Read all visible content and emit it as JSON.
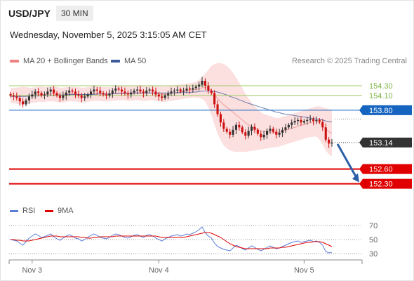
{
  "header": {
    "symbol": "USD/JPY",
    "timeframe": "30 MIN",
    "datetime": "Wednesday, November 5, 2025 3:15:05 AM CET"
  },
  "legend": {
    "ma20_label": "MA 20 + Bollinger Bands",
    "ma50_label": "MA 50",
    "copyright": "Research © 2025 Trading Central"
  },
  "rsi_legend": {
    "rsi_label": "RSI",
    "ma9_label": "9MA"
  },
  "colors": {
    "ma20": "#f08080",
    "ma50": "#3a5a9a",
    "bollinger_fill": "#fbd9d9",
    "rsi": "#5b7fd6",
    "ma9": "#e00000",
    "resistance": "#9ccc65",
    "pivot": "#1565c0",
    "support": "#e00000",
    "arrow": "#2c5ea8",
    "candle_up": "#333333",
    "candle_down": "#cc1111"
  },
  "chart_data": [
    {
      "type": "candlestick",
      "name": "price",
      "ylim": [
        151.95,
        154.6
      ],
      "x_labels": [
        "Nov 3",
        "Nov 4",
        "Nov 5"
      ],
      "levels": [
        {
          "value": 154.3,
          "label": "154.30",
          "kind": "resistance"
        },
        {
          "value": 154.1,
          "label": "154.10",
          "kind": "resistance"
        },
        {
          "value": 153.8,
          "label": "153.80",
          "kind": "pivot"
        },
        {
          "value": 152.6,
          "label": "152.60",
          "kind": "support"
        },
        {
          "value": 152.3,
          "label": "152.30",
          "kind": "support"
        }
      ],
      "last_price": {
        "value": 153.14,
        "label": "153.14"
      },
      "target": 152.3,
      "closes": [
        154.1,
        154.08,
        154.05,
        153.98,
        153.92,
        154.0,
        154.08,
        154.12,
        154.18,
        154.15,
        154.1,
        154.12,
        154.18,
        154.22,
        154.15,
        154.1,
        154.05,
        154.1,
        154.16,
        154.2,
        154.18,
        154.12,
        154.1,
        154.05,
        154.08,
        154.12,
        154.18,
        154.22,
        154.2,
        154.15,
        154.12,
        154.1,
        154.14,
        154.2,
        154.24,
        154.22,
        154.18,
        154.15,
        154.12,
        154.16,
        154.2,
        154.22,
        154.18,
        154.15,
        154.2,
        154.22,
        154.18,
        154.12,
        154.08,
        154.05,
        154.1,
        154.14,
        154.18,
        154.2,
        154.22,
        154.18,
        154.2,
        154.24,
        154.22,
        154.25,
        154.28,
        154.32,
        154.4,
        154.3,
        154.2,
        154.15,
        153.92,
        153.72,
        153.55,
        153.42,
        153.36,
        153.3,
        153.4,
        153.5,
        153.45,
        153.35,
        153.28,
        153.38,
        153.46,
        153.4,
        153.32,
        153.25,
        153.3,
        153.38,
        153.42,
        153.36,
        153.3,
        153.34,
        153.4,
        153.45,
        153.5,
        153.55,
        153.58,
        153.6,
        153.55,
        153.58,
        153.6,
        153.62,
        153.58,
        153.6,
        153.56,
        153.45,
        153.2,
        153.12,
        153.14
      ],
      "bollinger_upper": [
        154.25,
        154.26,
        154.26,
        154.27,
        154.28,
        154.27,
        154.26,
        154.26,
        154.27,
        154.28,
        154.28,
        154.27,
        154.27,
        154.28,
        154.28,
        154.27,
        154.26,
        154.26,
        154.27,
        154.28,
        154.28,
        154.27,
        154.27,
        154.26,
        154.26,
        154.27,
        154.28,
        154.29,
        154.29,
        154.28,
        154.27,
        154.27,
        154.27,
        154.28,
        154.29,
        154.3,
        154.3,
        154.29,
        154.29,
        154.29,
        154.3,
        154.31,
        154.31,
        154.3,
        154.3,
        154.31,
        154.31,
        154.3,
        154.29,
        154.28,
        154.28,
        154.29,
        154.3,
        154.31,
        154.32,
        154.32,
        154.33,
        154.34,
        154.35,
        154.36,
        154.38,
        154.42,
        154.48,
        154.55,
        154.62,
        154.7,
        154.74,
        154.76,
        154.76,
        154.74,
        154.7,
        154.64,
        154.56,
        154.46,
        154.36,
        154.25,
        154.14,
        154.04,
        153.96,
        153.88,
        153.82,
        153.76,
        153.72,
        153.7,
        153.68,
        153.66,
        153.64,
        153.64,
        153.66,
        153.68,
        153.7,
        153.72,
        153.74,
        153.76,
        153.78,
        153.8,
        153.82,
        153.84,
        153.86,
        153.88,
        153.88,
        153.86,
        153.84,
        153.82,
        153.8
      ],
      "bollinger_lower": [
        153.95,
        153.94,
        153.93,
        153.92,
        153.92,
        153.93,
        153.94,
        153.95,
        153.96,
        153.97,
        153.97,
        153.97,
        153.98,
        153.98,
        153.98,
        153.97,
        153.96,
        153.96,
        153.97,
        153.98,
        153.98,
        153.98,
        153.97,
        153.96,
        153.96,
        153.97,
        153.98,
        153.99,
        153.99,
        153.99,
        153.98,
        153.98,
        153.98,
        153.99,
        154.0,
        154.0,
        154.0,
        154.0,
        153.99,
        153.99,
        154.0,
        154.0,
        154.0,
        153.99,
        153.99,
        154.0,
        154.0,
        153.99,
        153.98,
        153.97,
        153.97,
        153.98,
        153.99,
        154.0,
        154.01,
        154.02,
        154.03,
        154.04,
        154.05,
        154.06,
        154.06,
        154.05,
        154.03,
        153.98,
        153.86,
        153.7,
        153.5,
        153.32,
        153.18,
        153.08,
        153.02,
        152.98,
        152.96,
        152.95,
        152.95,
        152.95,
        152.95,
        152.96,
        152.97,
        152.98,
        152.99,
        153.0,
        153.01,
        153.02,
        153.03,
        153.04,
        153.05,
        153.06,
        153.08,
        153.1,
        153.12,
        153.14,
        153.16,
        153.18,
        153.2,
        153.22,
        153.24,
        153.25,
        153.26,
        153.26,
        153.2,
        153.1,
        152.98,
        152.9,
        152.86
      ],
      "ma50": [
        154.08,
        154.08,
        154.08,
        154.08,
        154.08,
        154.08,
        154.09,
        154.09,
        154.09,
        154.09,
        154.1,
        154.1,
        154.1,
        154.1,
        154.1,
        154.11,
        154.11,
        154.11,
        154.11,
        154.12,
        154.12,
        154.12,
        154.12,
        154.12,
        154.12,
        154.12,
        154.12,
        154.12,
        154.13,
        154.13,
        154.13,
        154.13,
        154.13,
        154.13,
        154.14,
        154.14,
        154.14,
        154.14,
        154.14,
        154.14,
        154.15,
        154.15,
        154.15,
        154.15,
        154.15,
        154.15,
        154.15,
        154.15,
        154.15,
        154.15,
        154.15,
        154.15,
        154.15,
        154.15,
        154.16,
        154.16,
        154.16,
        154.16,
        154.16,
        154.17,
        154.17,
        154.18,
        154.19,
        154.19,
        154.19,
        154.19,
        154.18,
        154.17,
        154.15,
        154.13,
        154.11,
        154.08,
        154.06,
        154.04,
        154.01,
        153.99,
        153.96,
        153.94,
        153.92,
        153.9,
        153.88,
        153.86,
        153.84,
        153.82,
        153.8,
        153.78,
        153.76,
        153.75,
        153.73,
        153.72,
        153.71,
        153.7,
        153.69,
        153.68,
        153.67,
        153.66,
        153.65,
        153.64,
        153.63,
        153.62,
        153.61,
        153.6,
        153.58,
        153.57,
        153.56
      ]
    },
    {
      "type": "line",
      "name": "RSI",
      "ylim": [
        20,
        80
      ],
      "y_ticks": [
        70,
        50,
        30
      ],
      "rsi": [
        50,
        49,
        48,
        45,
        42,
        47,
        52,
        55,
        58,
        56,
        53,
        54,
        56,
        58,
        54,
        51,
        49,
        52,
        55,
        57,
        55,
        52,
        51,
        48,
        50,
        53,
        56,
        58,
        56,
        53,
        52,
        51,
        53,
        56,
        58,
        57,
        55,
        53,
        52,
        54,
        56,
        57,
        55,
        53,
        56,
        57,
        55,
        52,
        50,
        48,
        51,
        53,
        55,
        56,
        57,
        55,
        56,
        58,
        57,
        59,
        61,
        64,
        68,
        60,
        55,
        52,
        45,
        40,
        38,
        36,
        35,
        34,
        38,
        42,
        40,
        37,
        35,
        38,
        41,
        39,
        36,
        34,
        36,
        39,
        41,
        39,
        37,
        38,
        40,
        42,
        44,
        46,
        47,
        48,
        46,
        47,
        48,
        49,
        47,
        48,
        46,
        42,
        33,
        31,
        32
      ],
      "ma9": [
        50,
        50,
        49,
        49,
        48,
        48,
        48,
        49,
        50,
        51,
        52,
        53,
        54,
        55,
        55,
        55,
        54,
        54,
        54,
        54,
        54,
        54,
        54,
        53,
        53,
        52,
        52,
        53,
        53,
        54,
        54,
        54,
        54,
        54,
        55,
        55,
        55,
        55,
        55,
        55,
        55,
        55,
        55,
        55,
        55,
        55,
        55,
        55,
        54,
        53,
        53,
        53,
        53,
        53,
        53,
        53,
        53,
        54,
        55,
        56,
        57,
        58,
        59,
        60,
        60,
        59,
        57,
        55,
        53,
        50,
        47,
        44,
        42,
        40,
        39,
        38,
        37,
        37,
        37,
        37,
        37,
        37,
        37,
        37,
        38,
        38,
        38,
        38,
        39,
        39,
        40,
        41,
        42,
        43,
        44,
        45,
        46,
        46,
        47,
        47,
        47,
        46,
        44,
        42,
        40
      ]
    }
  ]
}
